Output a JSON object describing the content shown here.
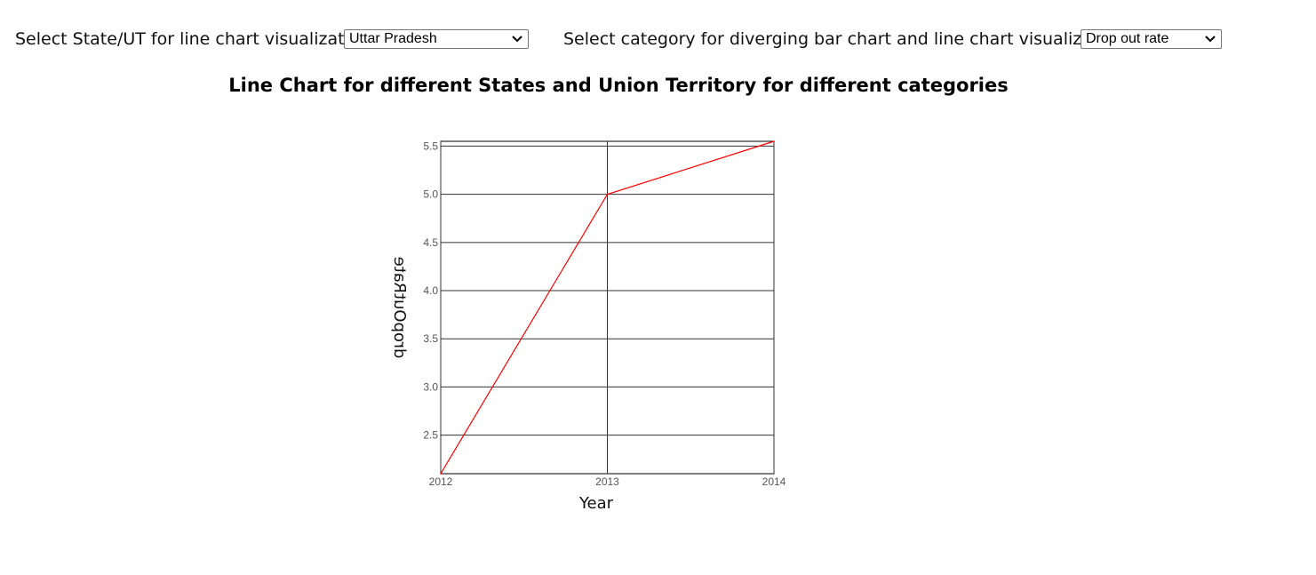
{
  "controls": {
    "state_label": "Select State/UT for line chart visualization",
    "state_value": "Uttar Pradesh",
    "category_label": "Select category for diverging bar chart and line chart visualization",
    "category_value": "Drop out rate"
  },
  "icons": {
    "dropdown": "chevron-down-icon"
  },
  "chart_data": {
    "type": "line",
    "title": "Line Chart for different States and Union Territory for different categories",
    "xlabel": "Year",
    "ylabel": "dropOutRate",
    "x": [
      2012,
      2013,
      2014
    ],
    "x_ticks": [
      "2012",
      "2013",
      "2014"
    ],
    "y_ticks": [
      "2.5",
      "3.0",
      "3.5",
      "4.0",
      "4.5",
      "5.0",
      "5.5"
    ],
    "ylim": [
      2.1,
      5.55
    ],
    "grid": true,
    "series": [
      {
        "values": [
          2.1,
          5.0,
          5.55
        ],
        "color": "#ff0000"
      }
    ]
  }
}
